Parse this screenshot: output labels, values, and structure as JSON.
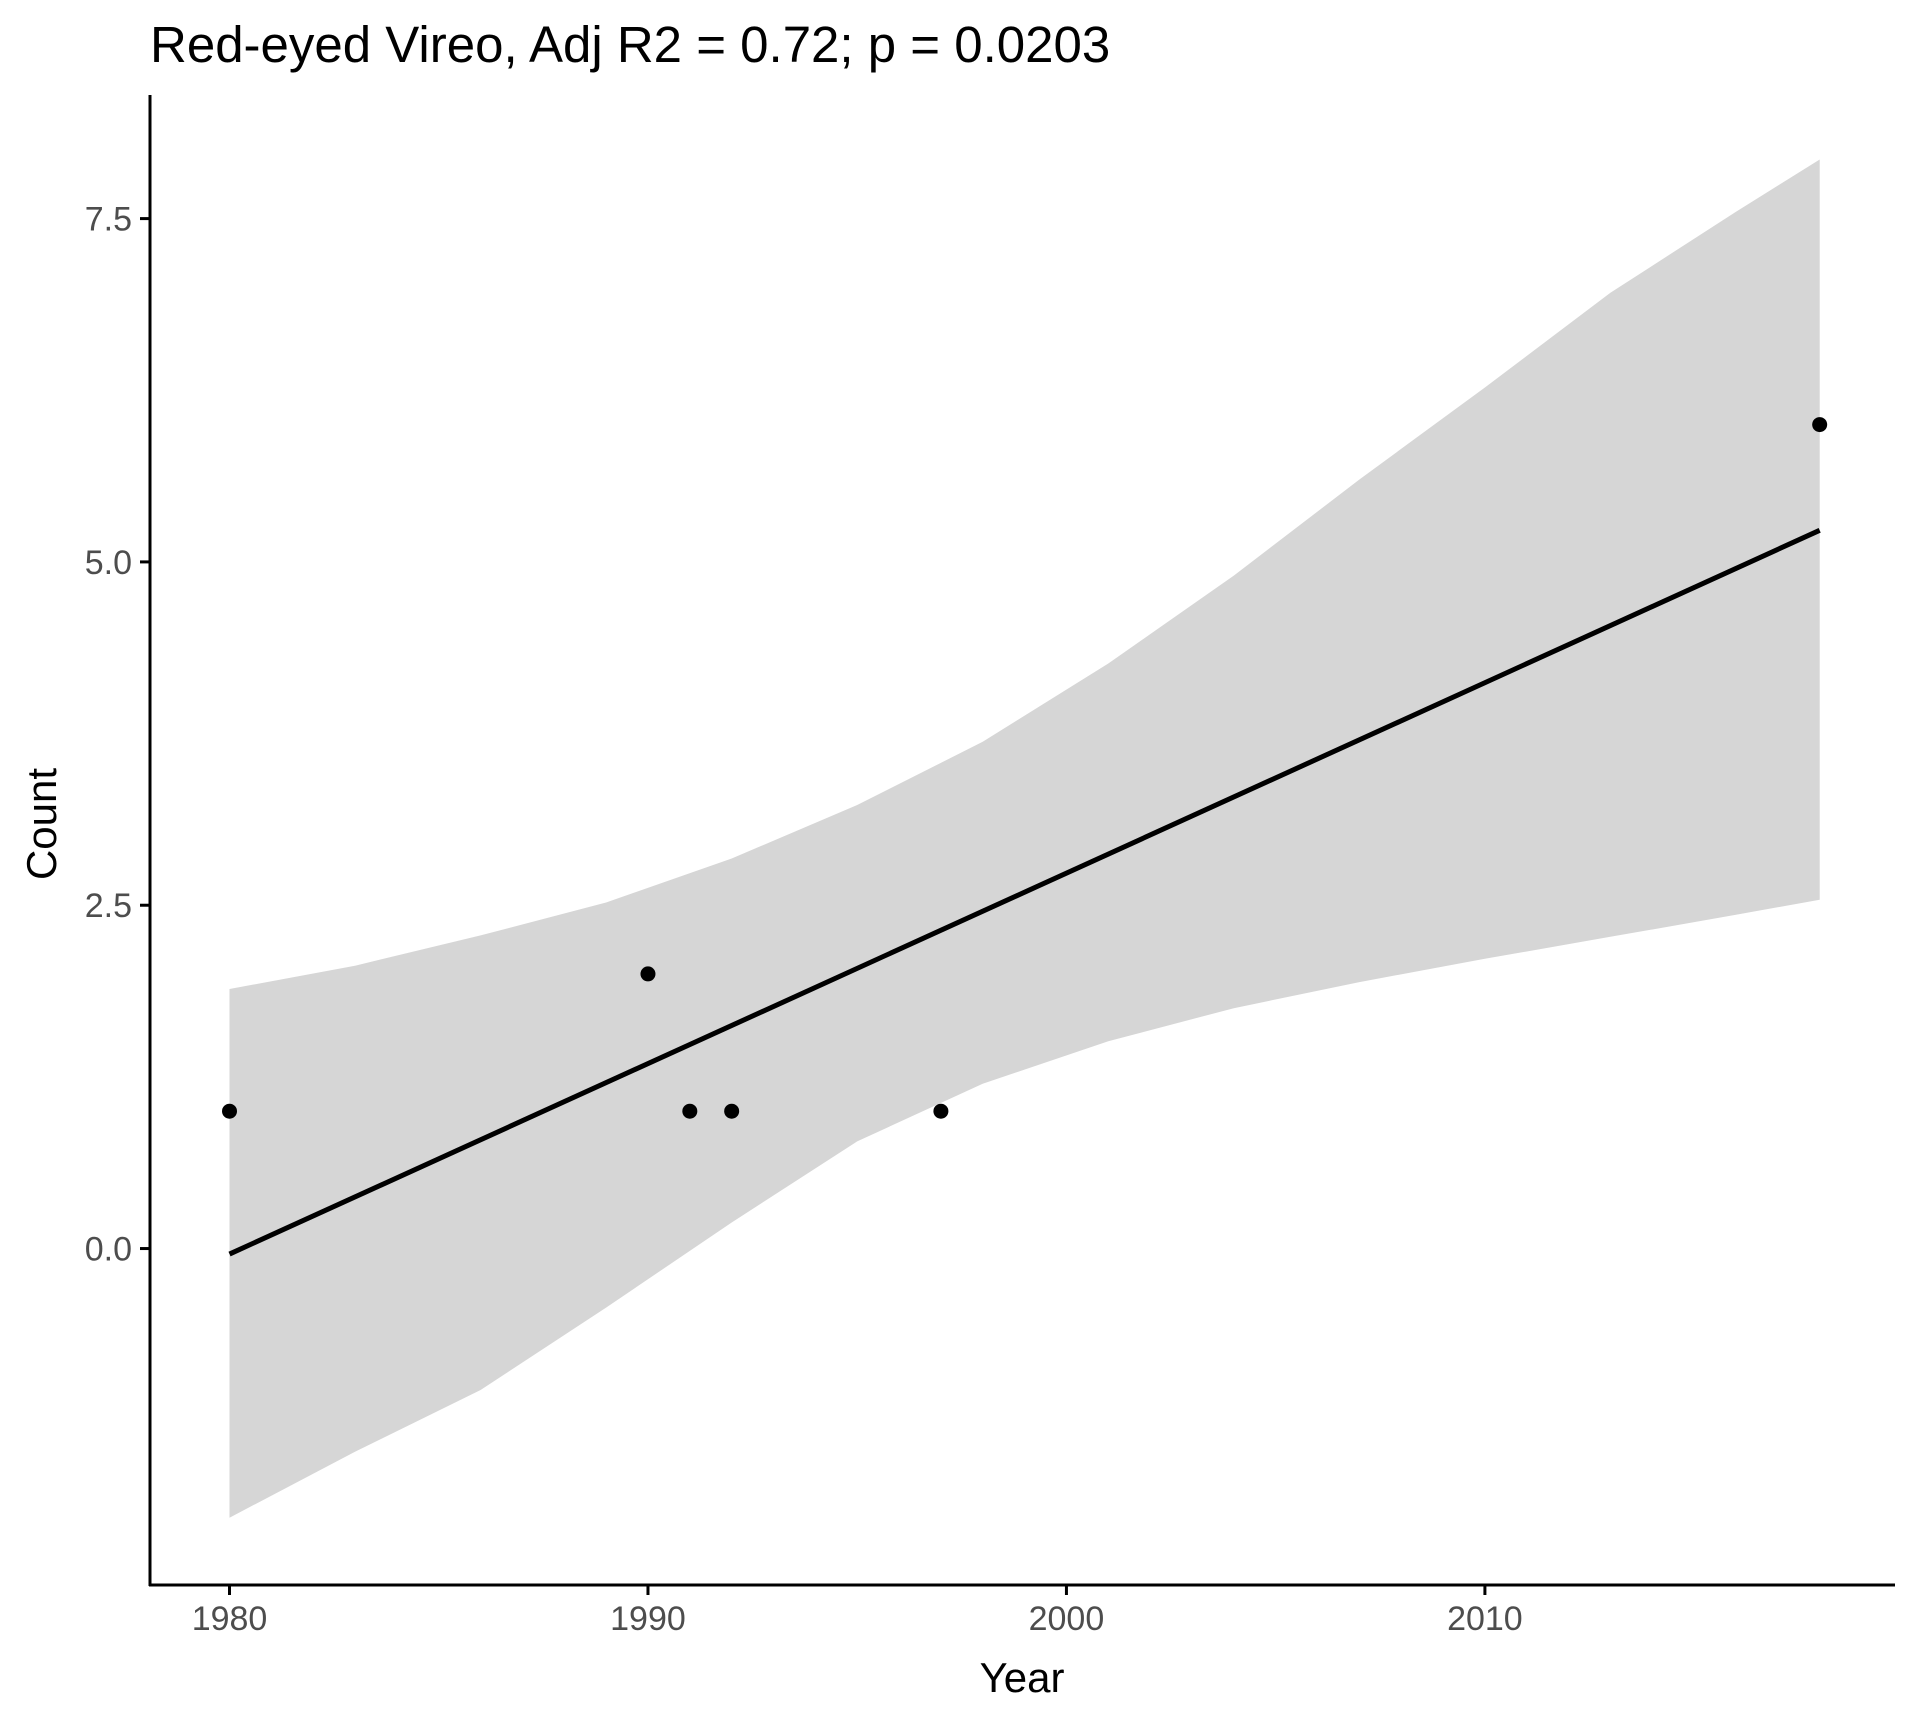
{
  "chart_data": {
    "type": "scatter",
    "title": "Red-eyed Vireo, Adj R2 = 0.72; p = 0.0203",
    "xlabel": "Year",
    "ylabel": "Count",
    "xlim": [
      1978.1,
      2019.8
    ],
    "ylim": [
      -2.45,
      8.4
    ],
    "x_ticks": [
      1980,
      1990,
      2000,
      2010
    ],
    "x_tick_labels": [
      "1980",
      "1990",
      "2000",
      "2010"
    ],
    "y_ticks": [
      0,
      2.5,
      5,
      7.5
    ],
    "y_tick_labels": [
      "0.0",
      "2.5",
      "5.0",
      "7.5"
    ],
    "grid": false,
    "legend": "none",
    "points": [
      {
        "x": 1980,
        "y": 1
      },
      {
        "x": 1990,
        "y": 2
      },
      {
        "x": 1991,
        "y": 1
      },
      {
        "x": 1992,
        "y": 1
      },
      {
        "x": 1997,
        "y": 1
      },
      {
        "x": 2018,
        "y": 6
      }
    ],
    "fit_line": {
      "x": [
        1980,
        2018
      ],
      "y": [
        -0.04,
        5.23
      ]
    },
    "confidence_band": {
      "x": [
        1980,
        1983,
        1986,
        1989,
        1992,
        1995,
        1998,
        2001,
        2004,
        2007,
        2010,
        2013,
        2016,
        2018
      ],
      "lower": [
        -1.96,
        -1.48,
        -1.03,
        -0.43,
        0.19,
        0.78,
        1.2,
        1.51,
        1.75,
        1.94,
        2.11,
        2.27,
        2.43,
        2.54
      ],
      "upper": [
        1.89,
        2.06,
        2.28,
        2.52,
        2.84,
        3.23,
        3.69,
        4.26,
        4.9,
        5.6,
        6.27,
        6.96,
        7.55,
        7.93
      ]
    },
    "colors": {
      "points": "#000000",
      "line": "#000000",
      "band": "#d6d6d6",
      "axis": "#000000",
      "tick_labels": "#4d4d4d"
    }
  }
}
